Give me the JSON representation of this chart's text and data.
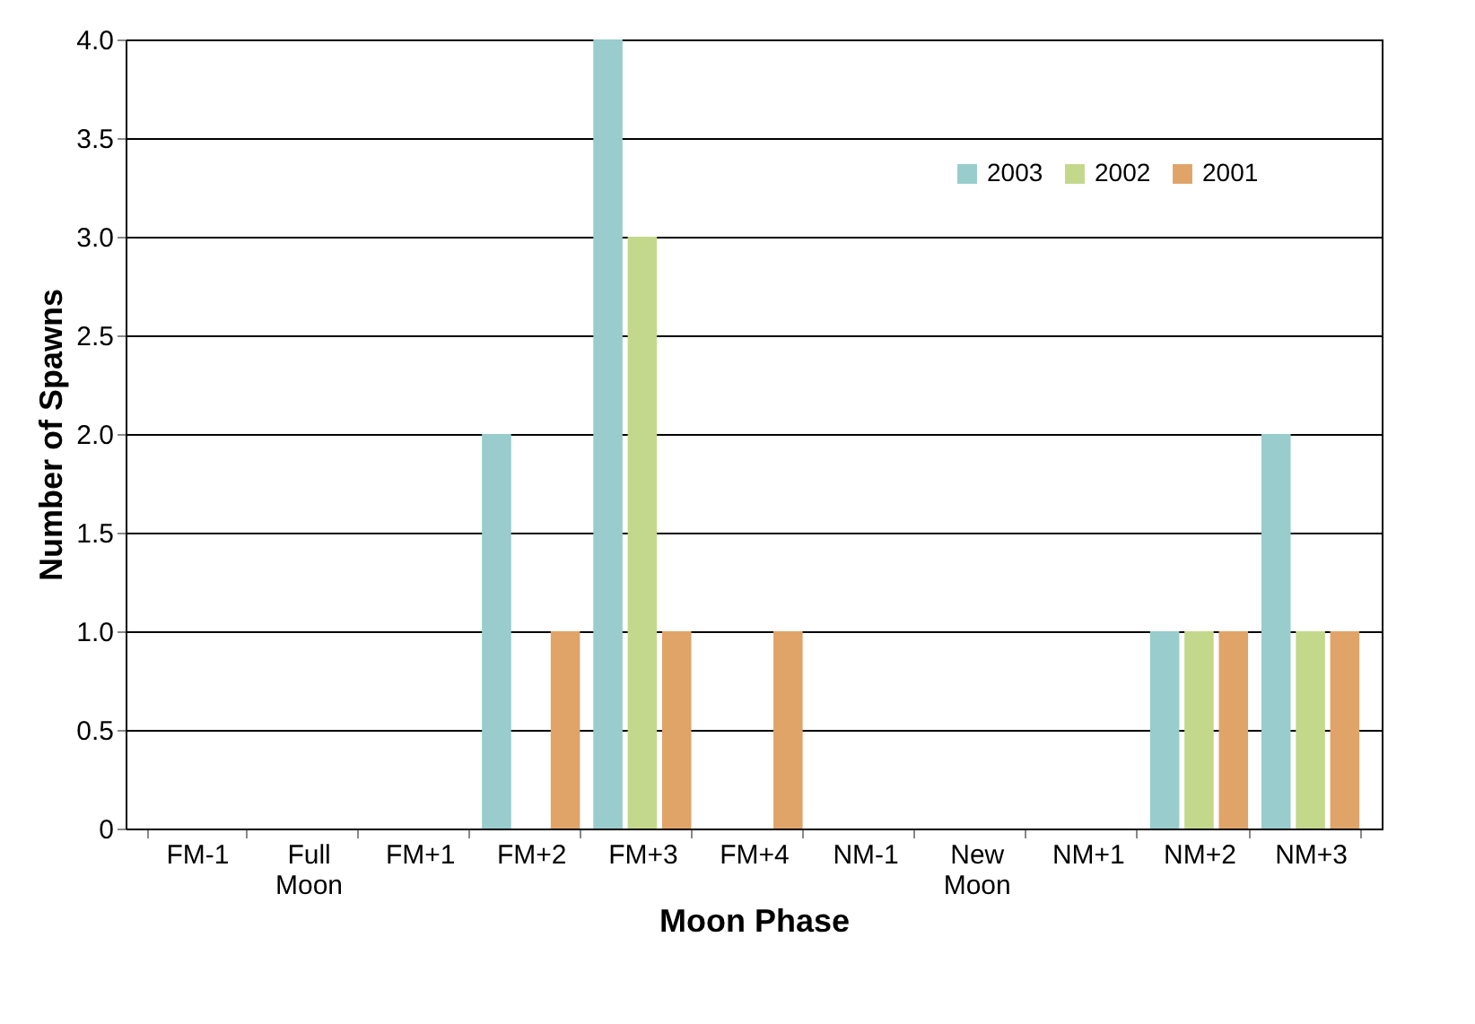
{
  "chart_data": {
    "type": "bar",
    "xlabel": "Moon Phase",
    "ylabel": "Number of Spawns",
    "categories": [
      "FM-1",
      "Full Moon",
      "FM+1",
      "FM+2",
      "FM+3",
      "FM+4",
      "NM-1",
      "New Moon",
      "NM+1",
      "NM+2",
      "NM+3"
    ],
    "series": [
      {
        "name": "2003",
        "color": "#99cccc",
        "values": [
          0,
          0,
          0,
          2,
          4,
          0,
          0,
          0,
          0,
          1,
          2
        ]
      },
      {
        "name": "2002",
        "color": "#c4d88c",
        "values": [
          0,
          0,
          0,
          0,
          3,
          0,
          0,
          0,
          0,
          1,
          1
        ]
      },
      {
        "name": "2001",
        "color": "#e0a468",
        "values": [
          0,
          0,
          0,
          1,
          1,
          1,
          0,
          0,
          0,
          1,
          1
        ]
      }
    ],
    "ylim": [
      0,
      4
    ],
    "yticks": [
      0,
      0.5,
      {
        "value": 1,
        "label": "1.0"
      },
      1.5,
      {
        "value": 2,
        "label": "2.0"
      },
      2.5,
      {
        "value": 3,
        "label": "3.0"
      },
      3.5,
      {
        "value": 4,
        "label": "4.0"
      }
    ],
    "grid": "y",
    "legend": "top right"
  }
}
